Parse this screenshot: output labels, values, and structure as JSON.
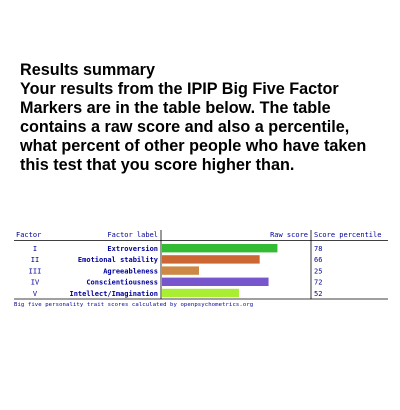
{
  "summary": {
    "title": "Results summary",
    "body": "Your results from the IPIP Big Five Factor Markers are in the table below. The table contains a raw score and also a percentile, what percent of other people who have taken this test that you score higher than."
  },
  "chart_data": {
    "type": "bar",
    "headers": {
      "factor": "Factor",
      "label": "Factor label",
      "raw": "Raw score",
      "percentile": "Score percentile"
    },
    "rows": [
      {
        "factor": "I",
        "label": "Extroversion",
        "value": 78,
        "percentile": "78",
        "color": "#33bb33"
      },
      {
        "factor": "II",
        "label": "Emotional stability",
        "value": 66,
        "percentile": "66",
        "color": "#cc6633"
      },
      {
        "factor": "III",
        "label": "Agreeableness",
        "value": 25,
        "percentile": "25",
        "color": "#cc8844"
      },
      {
        "factor": "IV",
        "label": "Conscientiousness",
        "value": 72,
        "percentile": "72",
        "color": "#7755cc"
      },
      {
        "factor": "V",
        "label": "Intellect/Imagination",
        "value": 52,
        "percentile": "52",
        "color": "#aaee33"
      }
    ],
    "xlim": [
      0,
      100
    ]
  },
  "footnote": "Big five personality trait scores calculated by openpsychometrics.org"
}
